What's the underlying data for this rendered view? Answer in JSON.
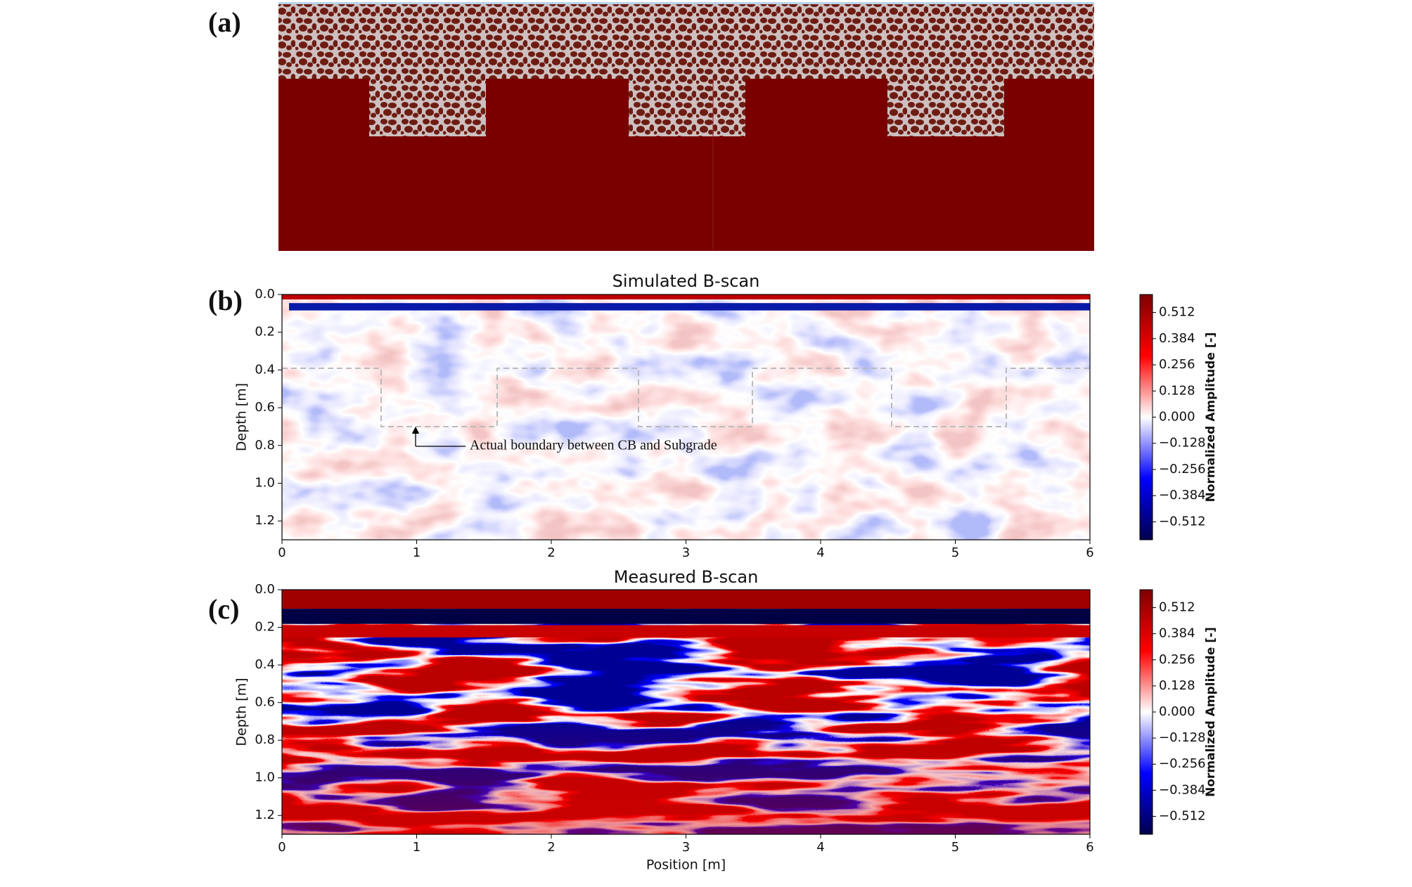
{
  "model_panel": {
    "label": "(a)"
  },
  "chart_data": [
    {
      "type": "heatmap",
      "panel_label": "(b)",
      "title": "Simulated B-scan",
      "ylabel": "Depth [m]",
      "annotation": "Actual boundary between CB and Subgrade",
      "xlim": [
        0,
        6
      ],
      "xticks": [
        0,
        1,
        2,
        3,
        4,
        5,
        6
      ],
      "ylim": [
        0,
        1.3
      ],
      "y_inverted": true,
      "yticks": [
        {
          "value": 0,
          "label": "0.0"
        },
        0.2,
        0.4,
        0.6,
        0.8,
        {
          "value": 1,
          "label": "1.0"
        },
        1.2
      ],
      "colormap": "seismic",
      "colorbar": {
        "label": "Normalized Amplitude [-]",
        "clim": [
          -0.6,
          0.6
        ],
        "ticks": [
          0.512,
          0.384,
          0.256,
          0.128,
          {
            "value": 0,
            "label": "0.000"
          },
          {
            "value": -0.128,
            "label": "−0.128"
          },
          {
            "value": -0.256,
            "label": "−0.256"
          },
          {
            "value": -0.384,
            "label": "−0.384"
          },
          {
            "value": -0.512,
            "label": "−0.512"
          }
        ]
      }
    },
    {
      "type": "heatmap",
      "panel_label": "(c)",
      "title": "Measured B-scan",
      "ylabel": "Depth [m]",
      "xlabel": "Position [m]",
      "xlim": [
        0,
        6
      ],
      "xticks": [
        0,
        1,
        2,
        3,
        4,
        5,
        6
      ],
      "ylim": [
        0,
        1.3
      ],
      "y_inverted": true,
      "yticks": [
        {
          "value": 0,
          "label": "0.0"
        },
        0.2,
        0.4,
        0.6,
        0.8,
        {
          "value": 1,
          "label": "1.0"
        },
        1.2
      ],
      "colormap": "seismic",
      "colorbar": {
        "label": "Normalized Amplitude [-]",
        "clim": [
          -0.6,
          0.6
        ],
        "ticks": [
          0.512,
          0.384,
          0.256,
          0.128,
          {
            "value": 0,
            "label": "0.000"
          },
          {
            "value": -0.128,
            "label": "−0.128"
          },
          {
            "value": -0.256,
            "label": "−0.256"
          },
          {
            "value": -0.384,
            "label": "−0.384"
          },
          {
            "value": -0.512,
            "label": "−0.512"
          }
        ]
      }
    }
  ]
}
